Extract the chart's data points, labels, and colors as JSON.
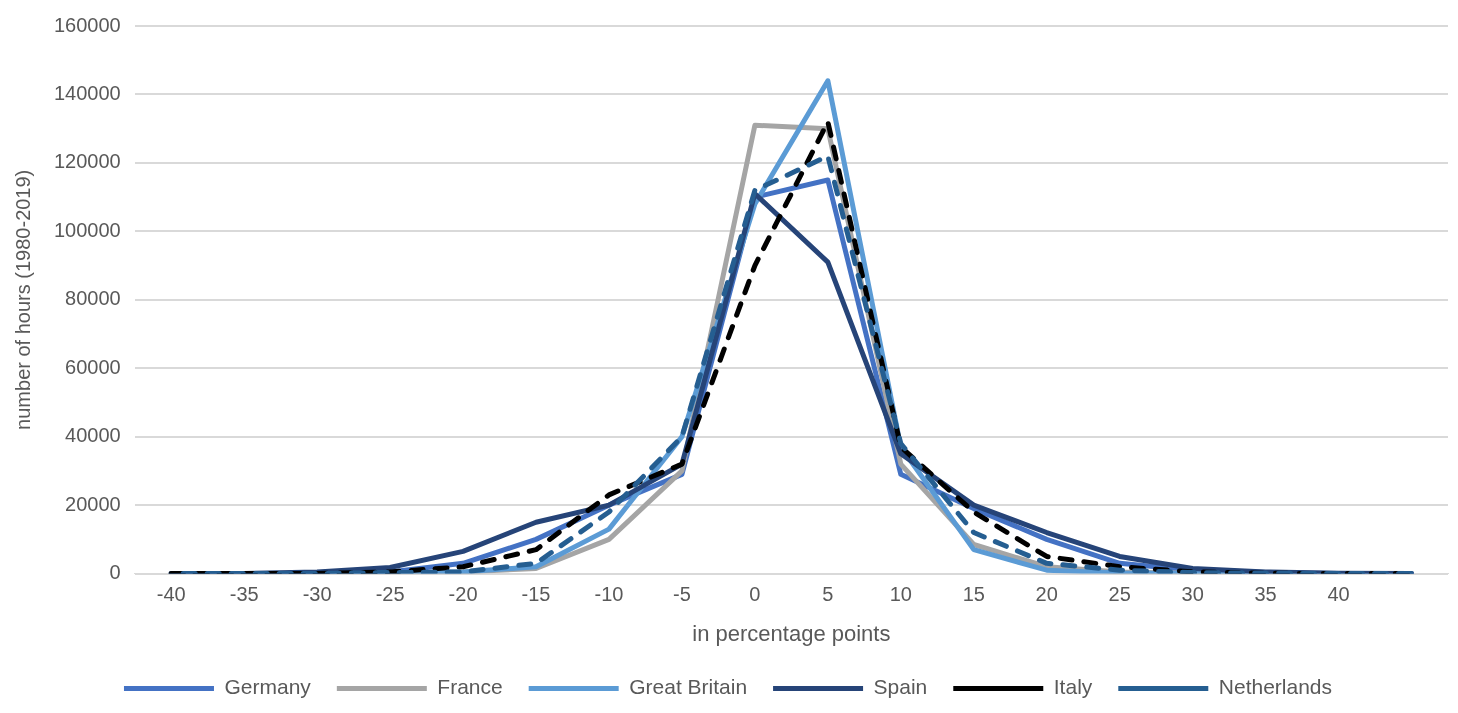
{
  "chart_data": {
    "type": "line",
    "xlabel": "in percentage points",
    "ylabel": "number of hours (1980-2019)",
    "categories": [
      "-40",
      "-35",
      "-30",
      "-25",
      "-20",
      "-15",
      "-10",
      "-5",
      "0",
      "5",
      "10",
      "15",
      "20",
      "25",
      "30",
      "35",
      "40",
      null
    ],
    "ylim": [
      0,
      160000
    ],
    "yticks": [
      0,
      20000,
      40000,
      60000,
      80000,
      100000,
      120000,
      140000,
      160000
    ],
    "grid": "y",
    "legend": "bottom",
    "marker": "none",
    "series": [
      {
        "name": "Germany",
        "color": "#4472c4",
        "line_style": "solid",
        "values": [
          0,
          0,
          0,
          500,
          3000,
          10000,
          20000,
          29000,
          110000,
          115000,
          29000,
          19000,
          10000,
          3000,
          1000,
          300,
          0,
          0
        ]
      },
      {
        "name": "France",
        "color": "#a5a5a5",
        "line_style": "solid",
        "values": [
          0,
          0,
          0,
          200,
          500,
          1500,
          10000,
          30000,
          131000,
          130000,
          32000,
          8500,
          2000,
          500,
          100,
          0,
          0,
          0
        ]
      },
      {
        "name": "Great Britain",
        "color": "#5b9bd5",
        "line_style": "solid",
        "values": [
          0,
          0,
          0,
          200,
          500,
          2000,
          13000,
          40000,
          108000,
          144000,
          37000,
          7000,
          1000,
          200,
          100,
          0,
          0,
          0
        ]
      },
      {
        "name": "Spain",
        "color": "#264478",
        "line_style": "solid",
        "values": [
          0,
          0,
          500,
          1800,
          6500,
          15000,
          20000,
          32000,
          111000,
          91000,
          35000,
          20000,
          12000,
          5000,
          1500,
          500,
          100,
          0
        ]
      },
      {
        "name": "Italy",
        "color": "#000000",
        "line_style": "dashed",
        "values": [
          0,
          0,
          0,
          500,
          2000,
          7000,
          23000,
          32000,
          90000,
          132000,
          37000,
          18000,
          5000,
          2000,
          500,
          100,
          0,
          0
        ]
      },
      {
        "name": "Netherlands",
        "color": "#255e91",
        "line_style": "dashed",
        "values": [
          0,
          0,
          0,
          300,
          500,
          3000,
          18000,
          40000,
          112000,
          122000,
          38000,
          12000,
          3000,
          1000,
          300,
          100,
          0,
          0
        ]
      }
    ]
  }
}
